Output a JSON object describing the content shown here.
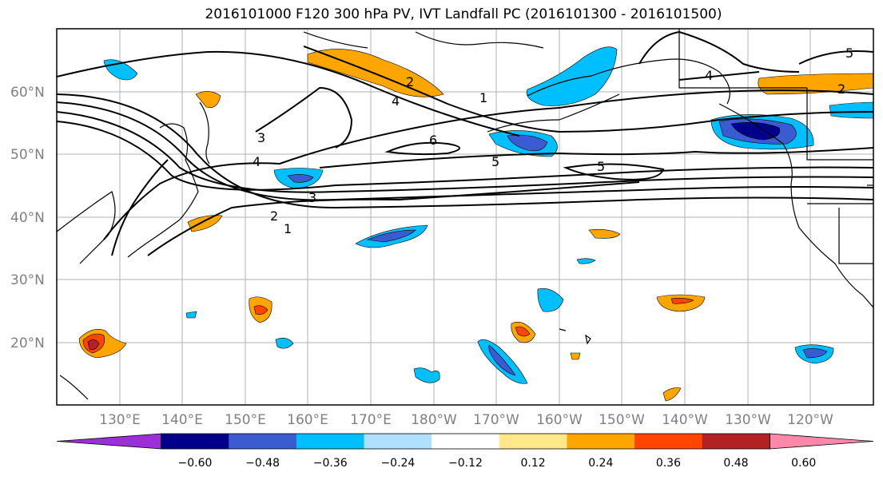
{
  "title": "2016101000 F120 300 hPa PV, IVT Landfall PC (2016101300 - 2016101500)",
  "map": {
    "lat_labels": [
      "60°N",
      "50°N",
      "40°N",
      "30°N",
      "20°N"
    ],
    "lon_labels": [
      "130°E",
      "140°E",
      "150°E",
      "160°E",
      "170°E",
      "180°W",
      "170°W",
      "160°W",
      "150°W",
      "140°W",
      "130°W",
      "120°W"
    ],
    "contour_levels": [
      "1",
      "2",
      "3",
      "4",
      "5",
      "6"
    ],
    "contour_color": "#000000",
    "grid_color": "#b0b0b0"
  },
  "colorbar": {
    "colors": [
      "#9b30d9",
      "#00008b",
      "#3b5bd1",
      "#00bfff",
      "#b0e0ff",
      "#ffffff",
      "#ffe88a",
      "#ffa500",
      "#ff4500",
      "#b22222",
      "#ff88aa"
    ],
    "tick_labels": [
      "−0.60",
      "−0.48",
      "−0.36",
      "−0.24",
      "−0.12",
      "0.12",
      "0.24",
      "0.36",
      "0.48",
      "0.60"
    ]
  }
}
